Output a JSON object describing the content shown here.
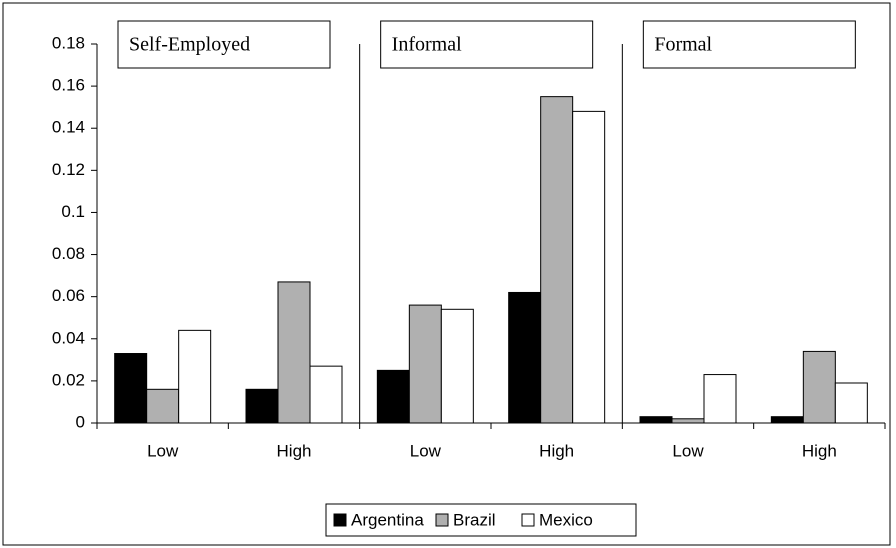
{
  "chart_data": {
    "type": "bar",
    "groups": [
      "Self-Employed",
      "Informal",
      "Formal"
    ],
    "categories": [
      "Low",
      "High",
      "Low",
      "High",
      "Low",
      "High"
    ],
    "series": [
      {
        "name": "Argentina",
        "color": "#000000",
        "values": [
          0.033,
          0.016,
          0.025,
          0.062,
          0.003,
          0.003
        ]
      },
      {
        "name": "Brazil",
        "color": "#b0b0b0",
        "values": [
          0.016,
          0.067,
          0.056,
          0.155,
          0.002,
          0.034
        ]
      },
      {
        "name": "Mexico",
        "color": "#ffffff",
        "values": [
          0.044,
          0.027,
          0.054,
          0.148,
          0.023,
          0.019
        ]
      }
    ],
    "ylim": [
      0,
      0.18
    ],
    "yticks": [
      0,
      0.02,
      0.04,
      0.06,
      0.08,
      0.1,
      0.12,
      0.14,
      0.16,
      0.18
    ],
    "grid": false,
    "legend": "bottom"
  }
}
